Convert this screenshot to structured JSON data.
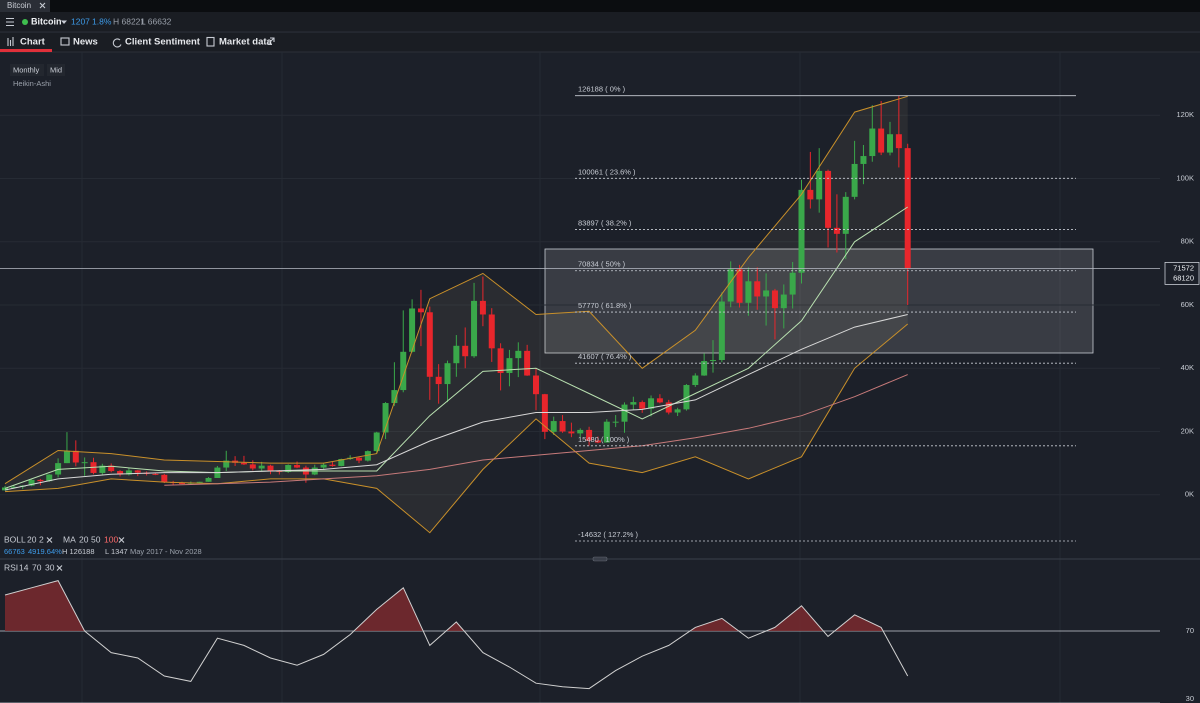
{
  "tab": {
    "title": "Bitcoin"
  },
  "header": {
    "instrument": "Bitcoin",
    "change": "1207",
    "change_pct": "1.8%",
    "high": "H 68221",
    "low": "L 66632"
  },
  "nav": [
    "Chart",
    "News",
    "Client Sentiment",
    "Market data"
  ],
  "chart_options": [
    "Monthly",
    "Mid",
    "Heikin-Ashi"
  ],
  "indicators": {
    "boll": [
      "BOLL",
      "20",
      "2"
    ],
    "ma": [
      "MA",
      "20",
      "50",
      "100"
    ],
    "info": [
      "66763",
      "4919.64%",
      "H 126188",
      "L 1347",
      "May 2017 - Nov 2028"
    ],
    "rsi": [
      "RSI",
      "14",
      "70",
      "30"
    ]
  },
  "chart_data": [
    {
      "type": "candlestick",
      "up_color": "#3aa84a",
      "down_color": "#e8262c",
      "open": [
        1400,
        2300,
        2500,
        2900,
        4700,
        4300,
        6400,
        10000,
        13900,
        10200,
        10300,
        6900,
        9200,
        7500,
        6400,
        7700,
        7000,
        6600,
        6300,
        4000,
        3700,
        3500,
        3800,
        4100,
        5300,
        8600,
        10800,
        10100,
        9600,
        8300,
        9200,
        7600,
        7200,
        9400,
        8600,
        6400,
        8600,
        9500,
        9100,
        11300,
        11700,
        10800,
        13800,
        19700,
        29000,
        33100,
        45200,
        58900,
        57700,
        37300,
        35000,
        41600,
        47100,
        43800,
        61300,
        57000,
        46300,
        38500,
        43200,
        45500,
        37700,
        31800,
        19900,
        23300,
        20000,
        19400,
        20500,
        17200,
        16500,
        23100,
        23100,
        28500,
        29300,
        27200,
        30500,
        29200,
        26000,
        27000,
        34700,
        37700,
        42300,
        42600,
        61100,
        71300,
        60700,
        67500,
        62700,
        64600,
        59000,
        63300,
        70200,
        96400,
        93400,
        102400,
        84400,
        82500,
        94200,
        104600,
        107100,
        115800,
        108200,
        114000,
        109600
      ],
      "close": [
        2300,
        2500,
        2900,
        4700,
        4300,
        6400,
        10000,
        13900,
        10200,
        10300,
        6900,
        9200,
        7500,
        6400,
        7700,
        7000,
        6600,
        6300,
        4000,
        3700,
        3500,
        3800,
        4100,
        5300,
        8600,
        10800,
        10100,
        9600,
        8300,
        9200,
        7600,
        7200,
        9400,
        8600,
        6400,
        8600,
        9500,
        9100,
        11300,
        11700,
        10800,
        13800,
        19700,
        29000,
        33100,
        45200,
        58900,
        57700,
        37300,
        35000,
        41600,
        47100,
        43800,
        61300,
        57000,
        46300,
        38500,
        43200,
        45500,
        37700,
        31800,
        19900,
        23300,
        20000,
        19400,
        20500,
        17200,
        16500,
        23100,
        23100,
        28500,
        29300,
        27200,
        30500,
        29200,
        26000,
        27000,
        34700,
        37700,
        42300,
        42600,
        61100,
        71300,
        60700,
        67500,
        62700,
        64600,
        59000,
        63300,
        70200,
        96400,
        93400,
        102400,
        84400,
        82500,
        94200,
        104600,
        107100,
        115800,
        108200,
        114000,
        109600,
        71600
      ],
      "high": [
        2800,
        3000,
        3000,
        4800,
        5000,
        6500,
        11500,
        19800,
        17200,
        11800,
        11700,
        9800,
        9900,
        7800,
        8500,
        7800,
        7400,
        6900,
        6600,
        4400,
        4100,
        4200,
        4100,
        5600,
        9100,
        13900,
        12200,
        12300,
        10900,
        10400,
        9500,
        7800,
        9600,
        10500,
        9200,
        9500,
        10100,
        10400,
        11400,
        12500,
        12100,
        14000,
        19900,
        29300,
        41900,
        58300,
        61800,
        64800,
        59500,
        41300,
        42400,
        50500,
        52900,
        67000,
        69000,
        59000,
        47900,
        45800,
        48200,
        47400,
        39900,
        31900,
        24700,
        25200,
        22800,
        21000,
        21500,
        18400,
        23900,
        25200,
        29200,
        31000,
        29800,
        31400,
        31800,
        30000,
        27500,
        35000,
        38400,
        44700,
        48900,
        64000,
        73800,
        72700,
        71900,
        71900,
        70000,
        65100,
        66500,
        73600,
        99600,
        108400,
        109600,
        102800,
        95000,
        95700,
        111900,
        110600,
        123200,
        124500,
        117900,
        126200,
        111000
      ],
      "low": [
        1300,
        1900,
        1800,
        2700,
        3000,
        4100,
        5500,
        10000,
        9000,
        6000,
        6500,
        6400,
        7100,
        5800,
        6100,
        5900,
        6100,
        6200,
        3700,
        3200,
        3400,
        3400,
        3700,
        4100,
        5300,
        7500,
        9100,
        9400,
        7700,
        7400,
        6500,
        6400,
        6900,
        8400,
        3800,
        6200,
        8100,
        8900,
        9000,
        11000,
        10000,
        10500,
        13200,
        17600,
        28100,
        32400,
        45000,
        47000,
        30000,
        28800,
        29300,
        37300,
        40000,
        43300,
        53300,
        42000,
        33000,
        34300,
        37200,
        37600,
        26700,
        17600,
        18900,
        19600,
        18200,
        18200,
        15500,
        16300,
        16500,
        21400,
        19600,
        26900,
        25900,
        24800,
        28900,
        25400,
        24900,
        26600,
        34100,
        37600,
        38600,
        41900,
        59300,
        59200,
        56600,
        58500,
        53500,
        49100,
        52600,
        58900,
        66800,
        90500,
        89200,
        78200,
        76600,
        74500,
        93400,
        98200,
        105300,
        107400,
        107300,
        103500,
        60000
      ],
      "series": [
        {
          "color": "#c9902a",
          "values": [
            3500,
            14000,
            13000,
            11000,
            10500,
            10000,
            10000,
            13000,
            62000,
            70000,
            57000,
            58000,
            40000,
            52000,
            75000,
            95000,
            121000,
            126000
          ]
        },
        {
          "color": "#c9902a",
          "values": [
            1000,
            2000,
            5000,
            4000,
            3500,
            5000,
            5000,
            2000,
            -12000,
            8000,
            24000,
            10000,
            7000,
            12000,
            5000,
            12000,
            40000,
            54000
          ]
        },
        {
          "color": "#b8e0b0",
          "values": [
            2000,
            8000,
            9000,
            7500,
            7000,
            7500,
            7500,
            7500,
            25000,
            39000,
            40000,
            32000,
            24000,
            32000,
            40000,
            55000,
            80000,
            91000
          ]
        },
        {
          "color": "#d8d8d8",
          "values": [
            1500,
            5000,
            6500,
            7000,
            7000,
            7500,
            8000,
            9500,
            17000,
            23000,
            26000,
            26000,
            27000,
            30000,
            38000,
            46000,
            53000,
            57000
          ]
        },
        {
          "color": "#c77a7a",
          "values": [
            null,
            null,
            null,
            3000,
            3500,
            4000,
            5000,
            6000,
            8000,
            11000,
            12500,
            14000,
            15500,
            18000,
            21000,
            25000,
            31000,
            38000
          ]
        }
      ],
      "band_fill": "rgba(220,210,160,0.07)",
      "ylim": [
        -20000,
        140000
      ],
      "yticks": [
        {
          "value": 120000,
          "label": "120K"
        },
        {
          "value": 100000,
          "label": "100K"
        },
        {
          "value": 80000,
          "label": "80K"
        },
        {
          "value": 60000,
          "label": "60K"
        },
        {
          "value": 40000,
          "label": "40K"
        },
        {
          "value": 20000,
          "label": "20K"
        },
        {
          "value": 0,
          "label": "0K"
        }
      ],
      "grid": true,
      "fib_levels": [
        {
          "value": 126188,
          "label": "126188 ( 0% )"
        },
        {
          "value": 100061,
          "label": "100061 ( 23.6% )"
        },
        {
          "value": 83897,
          "label": "83897 ( 38.2% )"
        },
        {
          "value": 70834,
          "label": "70834 ( 50% )"
        },
        {
          "value": 57770,
          "label": "57770 ( 61.8% )"
        },
        {
          "value": 41607,
          "label": "41607 ( 76.4% )"
        },
        {
          "value": 15480,
          "label": "15480 ( 100% )"
        },
        {
          "value": -14632,
          "label": "-14632 ( 127.2% )"
        }
      ],
      "price_labels": [
        71572,
        68120
      ]
    },
    {
      "type": "line",
      "color": "#d0d0d0",
      "overbought_fill": "#7a2a2e",
      "values": [
        90,
        94,
        98,
        70,
        58,
        55,
        45,
        42,
        66,
        62,
        55,
        51,
        57,
        68,
        82,
        94,
        62,
        75,
        58,
        50,
        41,
        39,
        38,
        48,
        56,
        62,
        72,
        77,
        66,
        72,
        84,
        67,
        79,
        72,
        45
      ],
      "ylim": [
        30,
        100
      ],
      "yticks": [
        70,
        30
      ],
      "grid": true
    }
  ]
}
